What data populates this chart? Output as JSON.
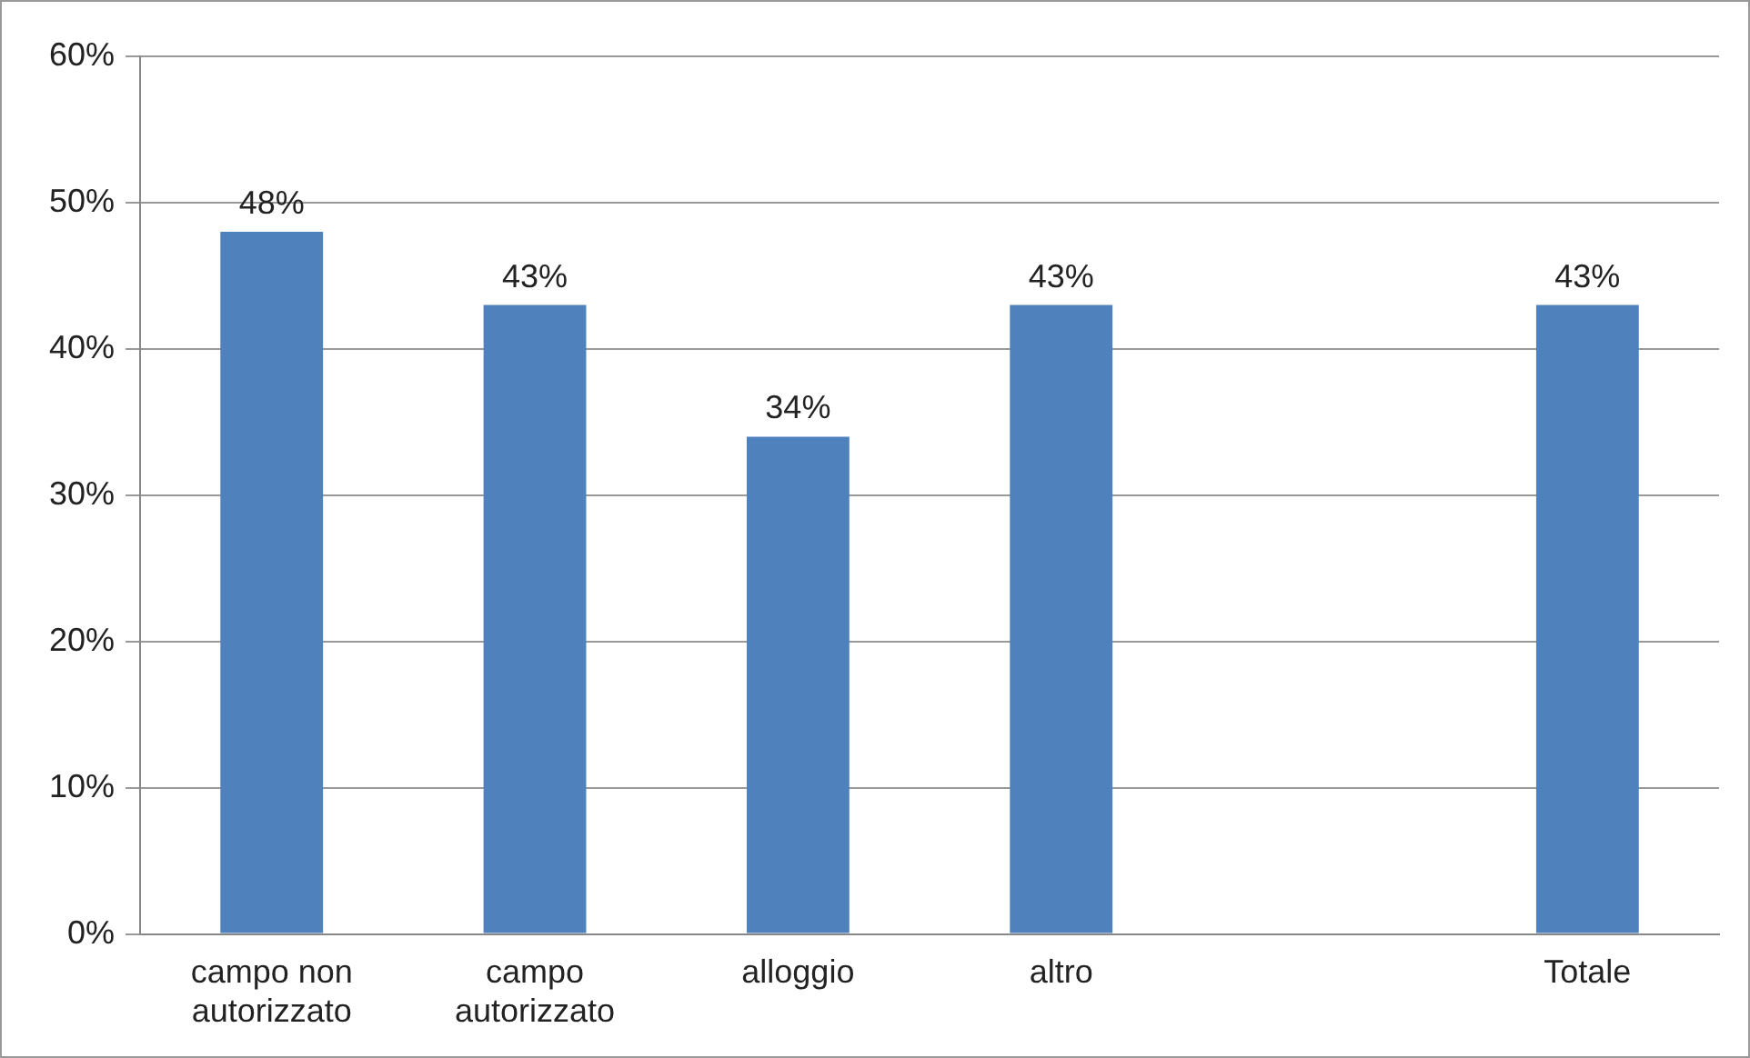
{
  "chart_data": {
    "type": "bar",
    "categories": [
      "campo non autorizzato",
      "campo autorizzato",
      "alloggio",
      "altro",
      null,
      "Totale"
    ],
    "values": [
      48,
      43,
      34,
      43,
      null,
      43
    ],
    "value_labels": [
      "48%",
      "43%",
      "34%",
      "43%",
      null,
      "43%"
    ],
    "color": "#4f81bd",
    "ylim": [
      0,
      60
    ],
    "yticks": [
      {
        "value": 0,
        "label": "0%"
      },
      {
        "value": 10,
        "label": "10%"
      },
      {
        "value": 20,
        "label": "20%"
      },
      {
        "value": 30,
        "label": "30%"
      },
      {
        "value": 40,
        "label": "40%"
      },
      {
        "value": 50,
        "label": "50%"
      },
      {
        "value": 60,
        "label": "60%"
      }
    ],
    "grid": "y",
    "legend": false
  }
}
